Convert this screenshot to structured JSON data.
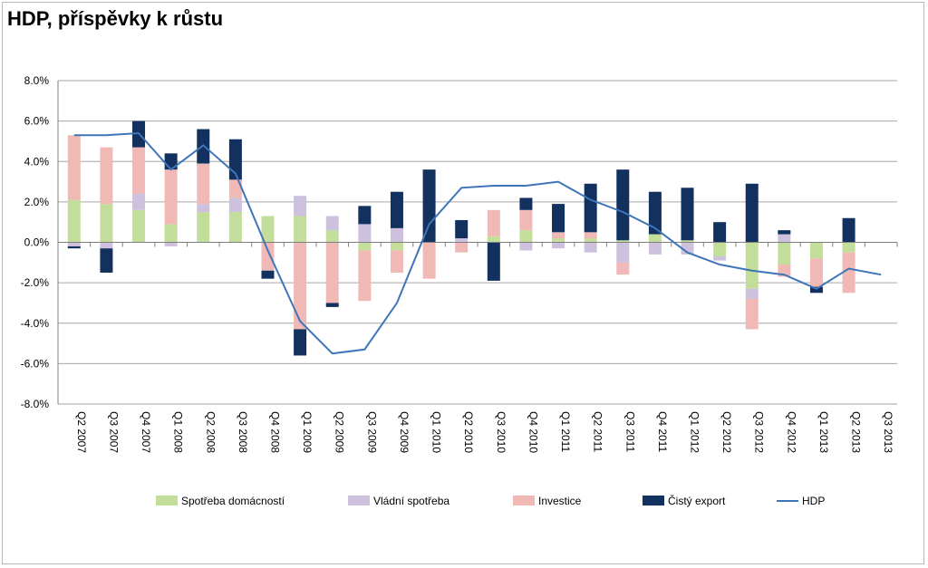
{
  "chart_data": {
    "type": "bar",
    "stacked": true,
    "title": "HDP, příspěvky k růstu",
    "xlabel": "",
    "ylabel": "",
    "ylim": [
      -8,
      8
    ],
    "yticks": [
      8,
      6,
      4,
      2,
      0,
      -2,
      -4,
      -6,
      -8
    ],
    "ytick_labels": [
      "8.0%",
      "6.0%",
      "4.0%",
      "2.0%",
      "0.0%",
      "-2.0%",
      "-4.0%",
      "-6.0%",
      "-8.0%"
    ],
    "grid": true,
    "legend_position": "bottom",
    "categories": [
      "Q2 2007",
      "Q3 2007",
      "Q4 2007",
      "Q1 2008",
      "Q2 2008",
      "Q3 2008",
      "Q4 2008",
      "Q1 2009",
      "Q2 2009",
      "Q3 2009",
      "Q4 2009",
      "Q1 2010",
      "Q2 2010",
      "Q3 2010",
      "Q4 2010",
      "Q1 2011",
      "Q2 2011",
      "Q3 2011",
      "Q4 2011",
      "Q1 2012",
      "Q2 2012",
      "Q3 2012",
      "Q4 2012",
      "Q1 2013",
      "Q2 2013",
      "Q3 2013"
    ],
    "series": [
      {
        "name": "Spotřeba domácností",
        "kind": "bar",
        "color": "#c3dd9b",
        "values": [
          2.1,
          1.9,
          1.6,
          0.9,
          1.5,
          1.5,
          1.3,
          1.3,
          0.6,
          -0.4,
          -0.4,
          0.0,
          0.0,
          0.3,
          0.6,
          0.2,
          0.2,
          0.1,
          0.4,
          0.1,
          -0.7,
          -2.3,
          -1.1,
          -0.8,
          -0.5,
          0.0
        ]
      },
      {
        "name": "Vládní spotřeba",
        "kind": "bar",
        "color": "#cdc1dd",
        "values": [
          -0.2,
          -0.3,
          0.8,
          -0.2,
          0.4,
          0.7,
          0.0,
          1.0,
          0.7,
          0.9,
          0.7,
          0.0,
          0.2,
          0.0,
          -0.4,
          -0.3,
          -0.5,
          -1.0,
          -0.6,
          -0.6,
          -0.2,
          -0.5,
          0.4,
          0.0,
          0.0,
          0.0
        ]
      },
      {
        "name": "Investice",
        "kind": "bar",
        "color": "#f0b9b6",
        "values": [
          3.2,
          2.8,
          2.3,
          2.7,
          2.0,
          0.9,
          -1.4,
          -4.3,
          -3.0,
          -2.5,
          -1.1,
          -1.8,
          -0.5,
          1.3,
          1.0,
          0.3,
          0.3,
          -0.6,
          0.0,
          0.0,
          0.0,
          -1.5,
          -0.6,
          -1.4,
          -2.0,
          0.0
        ]
      },
      {
        "name": "Čistý export",
        "kind": "bar",
        "color": "#13315f",
        "values": [
          -0.1,
          -1.2,
          1.3,
          0.8,
          1.7,
          2.0,
          -0.4,
          -1.3,
          -0.2,
          0.9,
          1.8,
          3.6,
          0.9,
          -1.9,
          0.6,
          1.4,
          2.4,
          3.5,
          2.1,
          2.6,
          1.0,
          2.9,
          0.2,
          -0.3,
          1.2,
          0.0
        ]
      },
      {
        "name": "HDP",
        "kind": "line",
        "color": "#3e75b8",
        "values": [
          5.3,
          5.3,
          5.4,
          3.6,
          4.8,
          3.4,
          -0.4,
          -3.9,
          -5.5,
          -5.3,
          -3.0,
          0.9,
          2.7,
          2.8,
          2.8,
          3.0,
          2.1,
          1.5,
          0.7,
          -0.5,
          -1.1,
          -1.4,
          -1.6,
          -2.3,
          -1.3,
          -1.6
        ]
      }
    ]
  }
}
